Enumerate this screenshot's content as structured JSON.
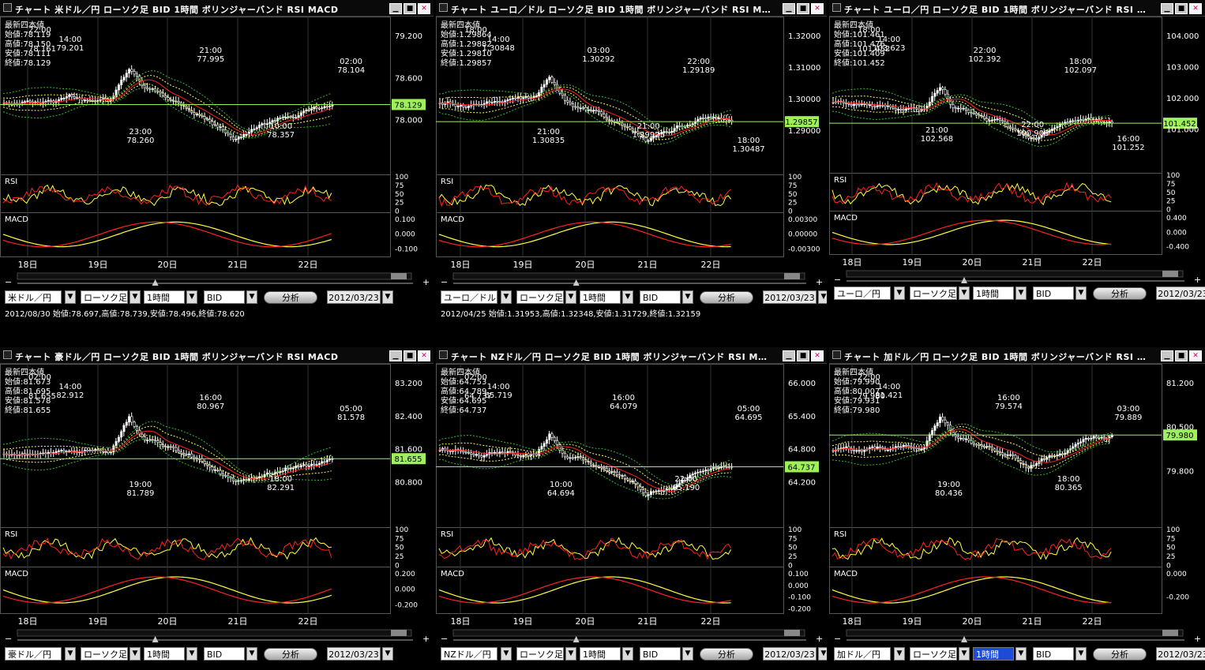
{
  "colors": {
    "candle_up": "#ffffff",
    "candle_down": "#ffffff",
    "ma": "#ff2020",
    "band1": "#ffff60",
    "band2": "#30c030",
    "price_line": "#9ef05a",
    "rsi1": "#ff2020",
    "rsi2": "#ffff40",
    "macd": "#ffff40",
    "signal": "#ff2020"
  },
  "controls": {
    "analyze_label": "分析",
    "chart_type": "ローソク足",
    "interval": "1時間",
    "bid": "BID",
    "dropdown_icon": "chevron-down-icon"
  },
  "days": [
    "18日",
    "19日",
    "20日",
    "21日",
    "22日"
  ],
  "panels": [
    {
      "title": "チャート  米ドル／円  ローソク足  BID  1時間  ボリンジャーバンド  RSI  MACD",
      "info": "最新四本値\n始値:78.119\n高値:78.150\n安値:78.111\n終値:78.129",
      "info_overlap": [
        "22:00",
        "78.161"
      ],
      "y_labels": [
        "79.200",
        "78.600",
        "78.000"
      ],
      "price": "78.129",
      "annotations": [
        [
          "14:00",
          "79.201"
        ],
        [
          "23:00",
          "78.260"
        ],
        [
          "21:00",
          "77.995"
        ],
        [
          "10:00",
          "78.357"
        ],
        [
          "02:00",
          "78.104"
        ]
      ],
      "rsi_label": "RSI",
      "rsi_ticks": [
        "100",
        "75",
        "50",
        "25",
        "0"
      ],
      "macd_label": "MACD",
      "macd_ticks": [
        "0.100",
        "0.000",
        "-0.100"
      ],
      "symbol": "米ドル／円",
      "date": "2012/03/23",
      "status": "2012/08/30 始値:78.697,高値:78.739,安値:78.496,終値:78.620"
    },
    {
      "title": "チャート  ユーロ／ドル  ローソク足  BID  1時間  ボリンジャーバンド  RSI  M…",
      "info": "最新四本値\n始値:1.29864\n高値:1.29882\n安値:1.29810\n終値:1.29857",
      "info_overlap": [
        "18:00"
      ],
      "y_labels": [
        "1.32000",
        "1.31000",
        "1.30000",
        "1.29000"
      ],
      "price": "1.29857",
      "annotations": [
        [
          "14:00",
          "1.30848"
        ],
        [
          "21:00",
          "1.30835"
        ],
        [
          "03:00",
          "1.30292"
        ],
        [
          "21:00",
          "1.29925"
        ],
        [
          "22:00",
          "1.29189"
        ],
        [
          "18:00",
          "1.30487"
        ]
      ],
      "rsi_label": "RSI",
      "rsi_ticks": [
        "100",
        "75",
        "50",
        "25",
        "0"
      ],
      "macd_label": "MACD",
      "macd_ticks": [
        "0.00300",
        "0.00000",
        "-0.00300"
      ],
      "symbol": "ユーロ／ドル",
      "date": "2012/03/23",
      "status": "2012/04/25 始値:1.31953,高値:1.32348,安値:1.31729,終値:1.32159"
    },
    {
      "title": "チャート  ユーロ／円  ローソク足  BID  1時間  ボリンジャーバンド  RSI  …",
      "info": "最新四本値\n始値:101.461\n高値:101.476\n安値:101.409\n終値:101.452",
      "info_overlap": [
        "18:00",
        "101.452"
      ],
      "y_labels": [
        "104.000",
        "103.000",
        "102.000",
        "101.000"
      ],
      "price": "101.452",
      "annotations": [
        [
          "14:00",
          "103.623"
        ],
        [
          "21:00",
          "102.568"
        ],
        [
          "22:00",
          "102.392"
        ],
        [
          "22:00",
          "100.908"
        ],
        [
          "18:00",
          "102.097"
        ],
        [
          "16:00",
          "101.252"
        ]
      ],
      "rsi_label": "RSI",
      "rsi_ticks": [
        "100",
        "75",
        "50",
        "25",
        "0"
      ],
      "macd_label": "MACD",
      "macd_ticks": [
        "0.400",
        "0.000",
        "-0.400"
      ],
      "symbol": "ユーロ／円",
      "date": "2012/03/23",
      "status": ""
    },
    {
      "title": "チャート  豪ドル／円  ローソク足  BID  1時間  ボリンジャーバンド  RSI  MACD",
      "info": "最新四本値\n始値:81.673\n高値:81.695\n安値:81.578\n終値:81.655",
      "info_overlap": [
        "02:00",
        "81.655"
      ],
      "y_labels": [
        "83.200",
        "82.400",
        "81.600",
        "80.800"
      ],
      "price": "81.655",
      "annotations": [
        [
          "14:00",
          "82.912"
        ],
        [
          "19:00",
          "81.789"
        ],
        [
          "16:00",
          "80.967"
        ],
        [
          "18:00",
          "82.291"
        ],
        [
          "05:00",
          "81.578"
        ]
      ],
      "rsi_label": "RSI",
      "rsi_ticks": [
        "100",
        "75",
        "50",
        "25",
        "0"
      ],
      "macd_label": "MACD",
      "macd_ticks": [
        "0.200",
        "0.000",
        "-0.200"
      ],
      "symbol": "豪ドル／円",
      "date": "2012/03/23",
      "status": ""
    },
    {
      "title": "チャート  NZドル／円  ローソク足  BID  1時間  ボリンジャーバンド  RSI  M…",
      "info": "最新四本値\n始値:64.753\n高値:64.789\n安値:64.695\n終値:64.737",
      "info_overlap": [
        "02:00",
        "64.737"
      ],
      "y_labels": [
        "66.000",
        "65.400",
        "64.800",
        "64.200"
      ],
      "price": "64.737",
      "annotations": [
        [
          "14:00",
          "65.719"
        ],
        [
          "10:00",
          "64.694"
        ],
        [
          "16:00",
          "64.079"
        ],
        [
          "22:00",
          "65.190"
        ],
        [
          "05:00",
          "64.695"
        ]
      ],
      "rsi_label": "RSI",
      "rsi_ticks": [
        "100",
        "75",
        "50",
        "25",
        "0"
      ],
      "macd_label": "MACD",
      "macd_ticks": [
        "0.100",
        "0.000",
        "-0.100",
        "-0.200"
      ],
      "symbol": "NZドル／円",
      "date": "2012/03/23",
      "status": ""
    },
    {
      "title": "チャート  加ドル／円  ローソク足  BID  1時間  ボリンジャーバンド  RSI  …",
      "info": "最新四本値\n始値:79.990\n高値:80.007\n安値:79.931\n終値:79.980",
      "info_overlap": [
        "22:00",
        "79.980"
      ],
      "y_labels": [
        "81.200",
        "80.500",
        "79.800"
      ],
      "price": "79.980",
      "annotations": [
        [
          "14:00",
          "81.421"
        ],
        [
          "19:00",
          "80.436"
        ],
        [
          "16:00",
          "79.574"
        ],
        [
          "18:00",
          "80.365"
        ],
        [
          "03:00",
          "79.889"
        ]
      ],
      "rsi_label": "RSI",
      "rsi_ticks": [
        "100",
        "75",
        "50",
        "25",
        "0"
      ],
      "macd_label": "MACD",
      "macd_ticks": [
        "0.000",
        "-0.200"
      ],
      "symbol": "加ドル／円",
      "date": "2012/03/23",
      "status": ""
    }
  ]
}
